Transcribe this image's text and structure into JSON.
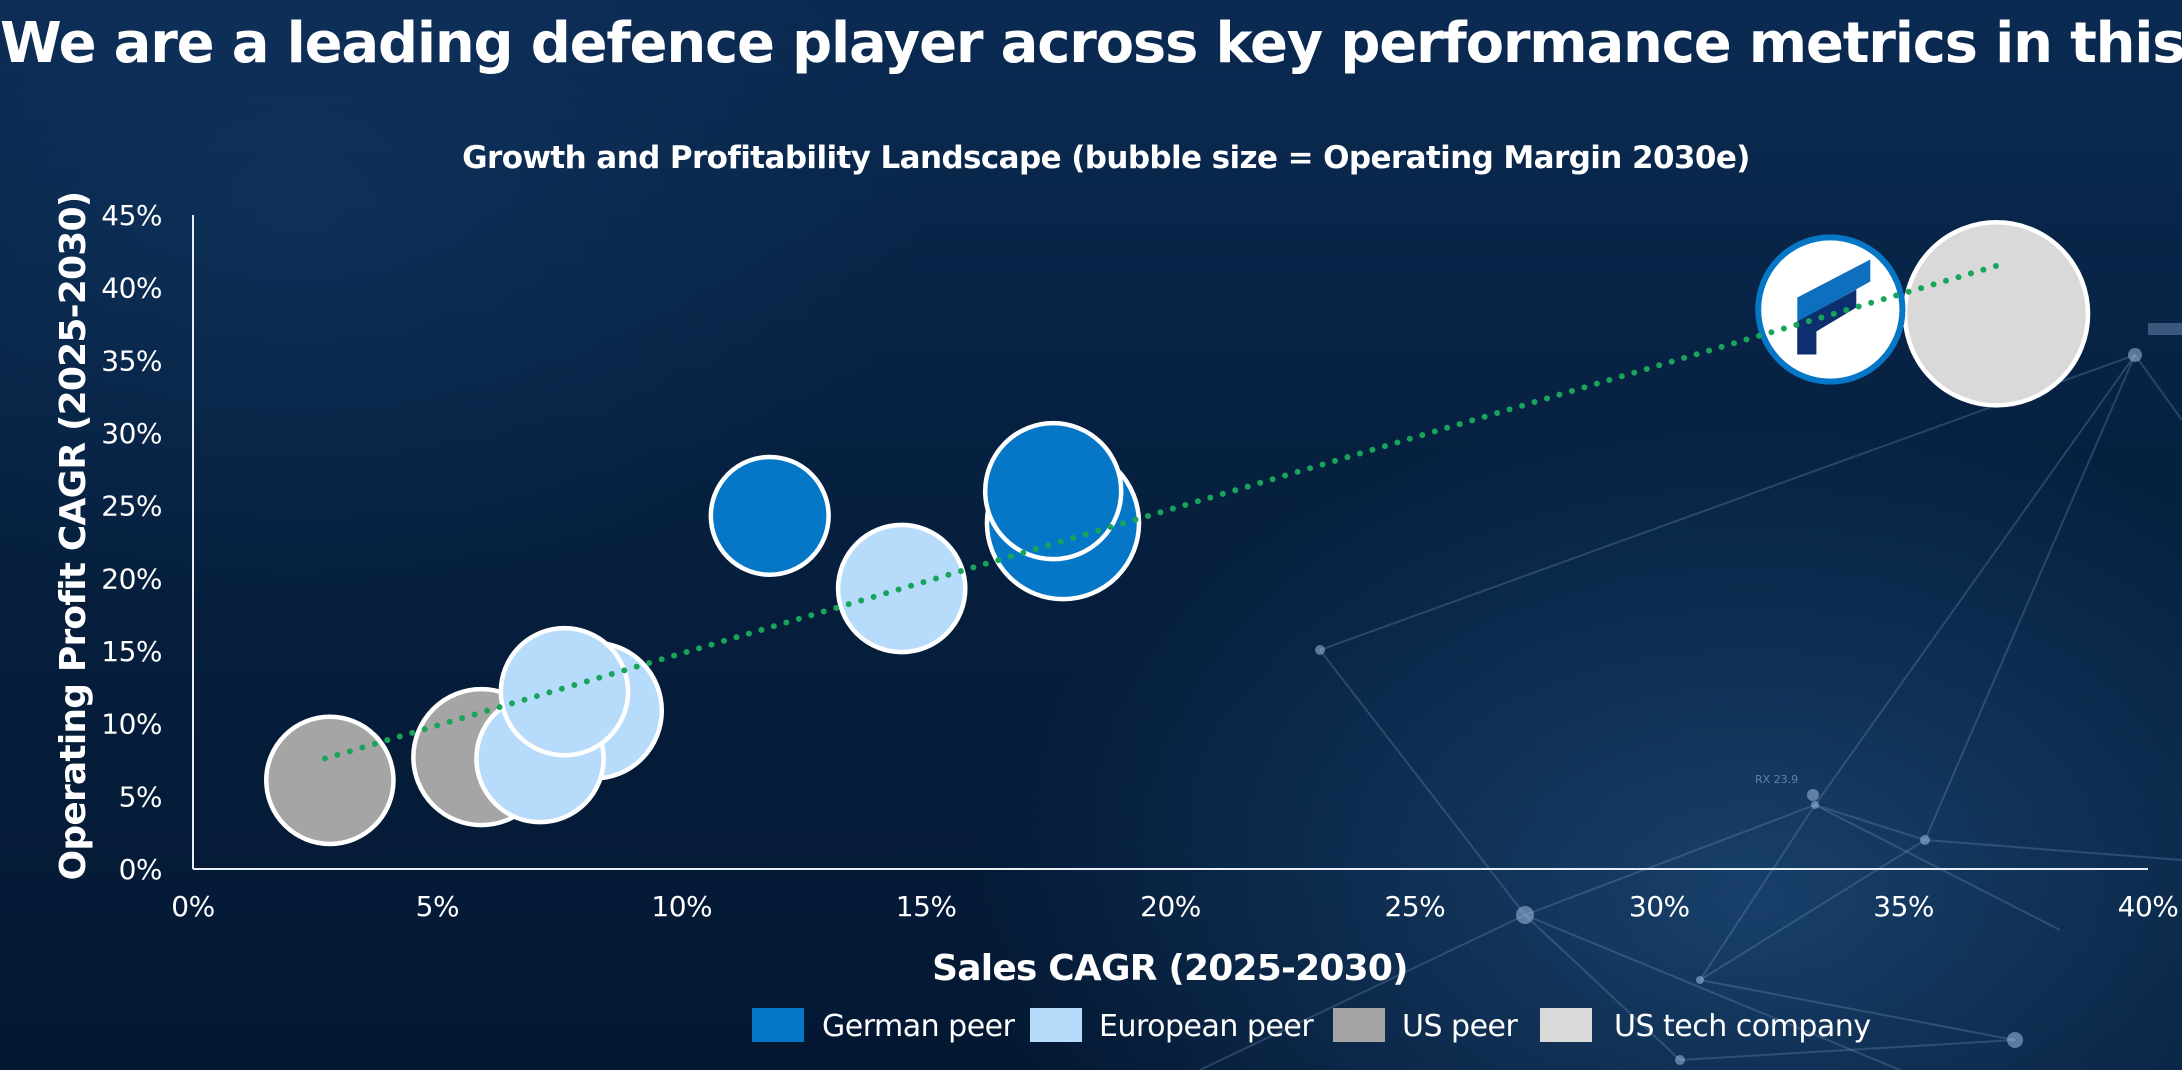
{
  "slide": {
    "title": "We are a leading defence player across key performance metrics in this cycle"
  },
  "background": {
    "annotation": "RX 23.9"
  },
  "colors": {
    "german_peer": "#0577c6",
    "european_peer": "#b7dcfb",
    "us_peer": "#a5a5a5",
    "us_tech_company": "#d9d9d9",
    "trendline": "#18a55b",
    "bubble_outline": "#ffffff",
    "logo_dark": "#0e2f6e",
    "logo_blue": "#0d6fbd"
  },
  "chart_data": {
    "type": "scatter",
    "subtype": "bubble",
    "title": "Growth and Profitability Landscape (bubble size = Operating Margin 2030e)",
    "xlabel": "Sales CAGR (2025-2030)",
    "ylabel": "Operating Profit CAGR (2025-2030)",
    "xlim": [
      0,
      40
    ],
    "ylim": [
      0,
      45
    ],
    "x_ticks": [
      0,
      5,
      10,
      15,
      20,
      25,
      30,
      35,
      40
    ],
    "y_ticks": [
      0,
      5,
      10,
      15,
      20,
      25,
      30,
      35,
      40,
      45
    ],
    "x_tick_labels": [
      "0%",
      "5%",
      "10%",
      "15%",
      "20%",
      "25%",
      "30%",
      "35%",
      "40%"
    ],
    "y_tick_labels": [
      "0%",
      "5%",
      "10%",
      "15%",
      "20%",
      "25%",
      "30%",
      "35%",
      "40%",
      "45%"
    ],
    "grid": false,
    "legend_position": "bottom",
    "series": [
      {
        "name": "German peer",
        "color_key": "german_peer",
        "points": [
          {
            "x": 11.8,
            "y": 24.3,
            "size": 12
          },
          {
            "x": 17.6,
            "y": 26.0,
            "size": 16
          },
          {
            "x": 17.8,
            "y": 23.8,
            "size": 20
          },
          {
            "x": 33.5,
            "y": 38.5,
            "size": 18,
            "marker": "logo"
          }
        ]
      },
      {
        "name": "European peer",
        "color_key": "european_peer",
        "points": [
          {
            "x": 7.1,
            "y": 7.6,
            "size": 14
          },
          {
            "x": 7.6,
            "y": 12.2,
            "size": 14
          },
          {
            "x": 8.2,
            "y": 10.9,
            "size": 16
          },
          {
            "x": 14.5,
            "y": 19.3,
            "size": 14
          }
        ]
      },
      {
        "name": "US peer",
        "color_key": "us_peer",
        "points": [
          {
            "x": 2.8,
            "y": 6.1,
            "size": 14
          },
          {
            "x": 5.9,
            "y": 7.7,
            "size": 16
          }
        ]
      },
      {
        "name": "US tech company",
        "color_key": "us_tech_company",
        "points": [
          {
            "x": 36.9,
            "y": 38.2,
            "size": 29
          }
        ]
      }
    ],
    "trendline": {
      "style": "dotted",
      "x": [
        2.7,
        36.9
      ],
      "y": [
        7.6,
        41.5
      ]
    },
    "legend": [
      {
        "label": "German peer",
        "color_key": "german_peer"
      },
      {
        "label": "European peer",
        "color_key": "european_peer"
      },
      {
        "label": "US peer",
        "color_key": "us_peer"
      },
      {
        "label": "US tech company",
        "color_key": "us_tech_company"
      }
    ]
  }
}
